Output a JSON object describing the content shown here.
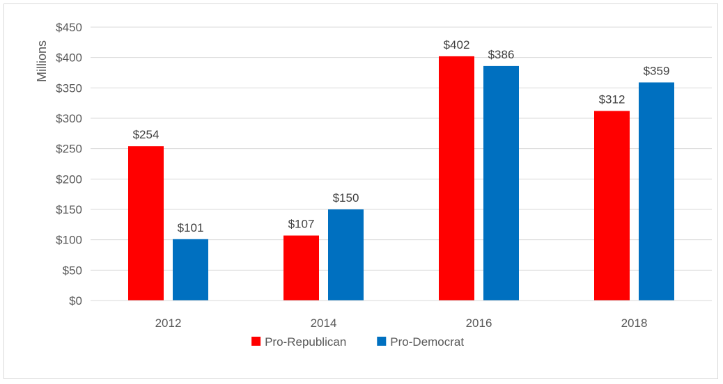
{
  "chart_data": {
    "type": "bar",
    "ylabel": "Millions",
    "ylim": [
      0,
      450
    ],
    "ytick_step": 50,
    "ytick_labels": [
      "$0",
      "$50",
      "$100",
      "$150",
      "$200",
      "$250",
      "$300",
      "$350",
      "$400",
      "$450"
    ],
    "categories": [
      "2012",
      "2014",
      "2016",
      "2018"
    ],
    "series": [
      {
        "name": "Pro-Republican",
        "color": "#ff0000",
        "values": [
          254,
          107,
          402,
          312
        ],
        "labels": [
          "$254",
          "$107",
          "$402",
          "$312"
        ]
      },
      {
        "name": "Pro-Democrat",
        "color": "#0070c0",
        "values": [
          101,
          150,
          386,
          359
        ],
        "labels": [
          "$101",
          "$150",
          "$386",
          "$359"
        ]
      }
    ],
    "grid": true,
    "legend_position": "bottom"
  }
}
